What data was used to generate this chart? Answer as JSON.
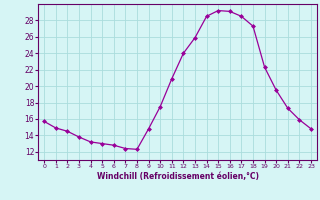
{
  "x": [
    0,
    1,
    2,
    3,
    4,
    5,
    6,
    7,
    8,
    9,
    10,
    11,
    12,
    13,
    14,
    15,
    16,
    17,
    18,
    19,
    20,
    21,
    22,
    23
  ],
  "y": [
    15.7,
    14.9,
    14.5,
    13.8,
    13.2,
    13.0,
    12.8,
    12.4,
    12.3,
    14.8,
    17.5,
    20.9,
    24.0,
    25.9,
    28.5,
    29.2,
    29.1,
    28.5,
    27.3,
    22.3,
    19.5,
    17.3,
    15.9,
    14.8
  ],
  "line_color": "#990099",
  "marker": "D",
  "marker_size": 2,
  "bg_color": "#d6f5f5",
  "grid_color": "#aadddd",
  "xlabel": "Windchill (Refroidissement éolien,°C)",
  "xlabel_color": "#660066",
  "tick_color": "#660066",
  "spine_color": "#660066",
  "xlim": [
    -0.5,
    23.5
  ],
  "ylim": [
    11,
    30
  ],
  "yticks": [
    12,
    14,
    16,
    18,
    20,
    22,
    24,
    26,
    28
  ],
  "xticks": [
    0,
    1,
    2,
    3,
    4,
    5,
    6,
    7,
    8,
    9,
    10,
    11,
    12,
    13,
    14,
    15,
    16,
    17,
    18,
    19,
    20,
    21,
    22,
    23
  ]
}
